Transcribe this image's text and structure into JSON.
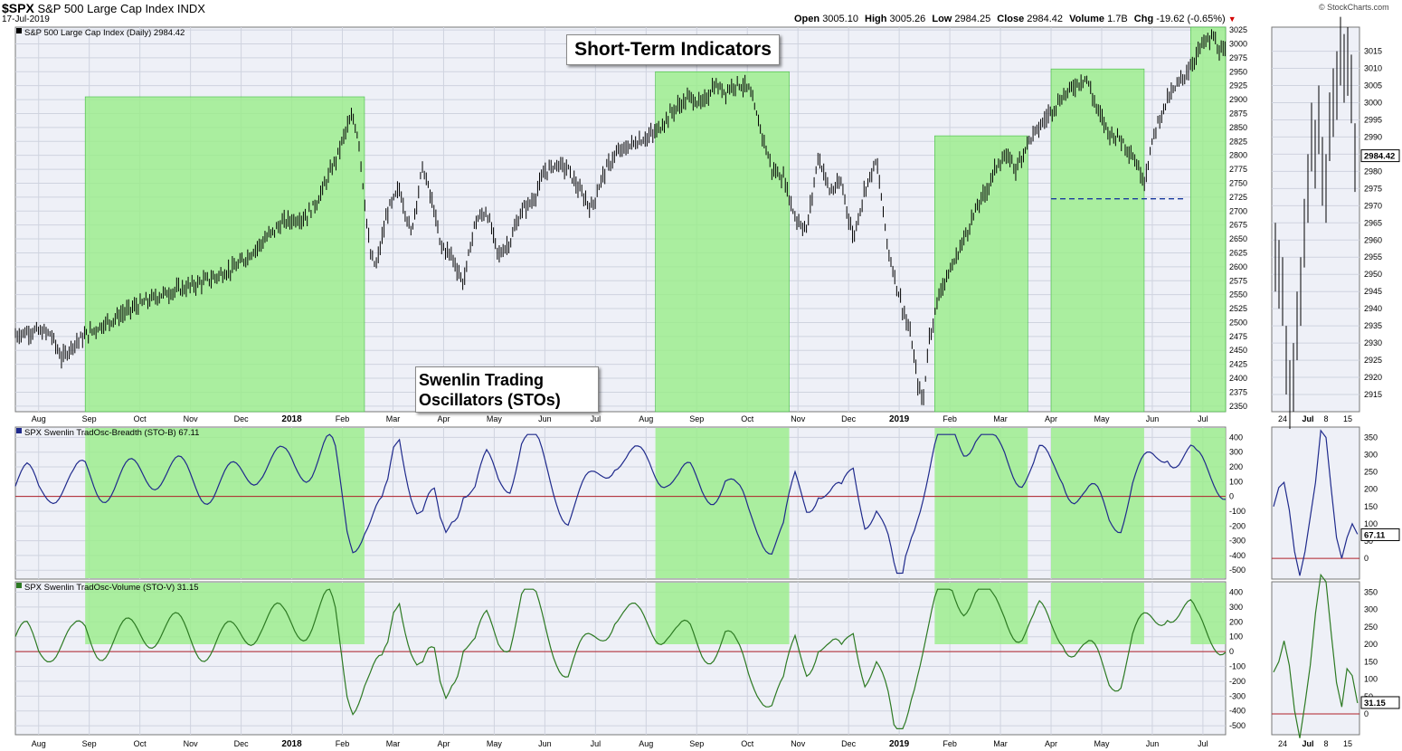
{
  "header": {
    "symbol": "$SPX",
    "name": "S&P 500 Large Cap Index",
    "exchange": "INDX",
    "date": "17-Jul-2019",
    "open_label": "Open",
    "open": "3005.10",
    "high_label": "High",
    "high": "3005.26",
    "low_label": "Low",
    "low": "2984.25",
    "close_label": "Close",
    "close": "2984.42",
    "volume_label": "Volume",
    "volume": "1.7B",
    "chg_label": "Chg",
    "chg": "-19.62 (-0.65%)",
    "watermark": "© StockCharts.com"
  },
  "annotations": {
    "short_term": "Short-Term Indicators",
    "stos_line1": "Swenlin Trading",
    "stos_line2": "Oscillators (STOs)"
  },
  "chart_data": [
    {
      "type": "line",
      "legend": "S&P 500 Large Cap Index (Daily) 2984.42",
      "last_value": "2984.42",
      "x_ticks": [
        "Aug",
        "Sep",
        "Oct",
        "Nov",
        "Dec",
        "2018",
        "Feb",
        "Mar",
        "Apr",
        "May",
        "Jun",
        "Jul",
        "Aug",
        "Sep",
        "Oct",
        "Nov",
        "Dec",
        "2019",
        "Feb",
        "Mar",
        "Apr",
        "May",
        "Jun",
        "Jul"
      ],
      "y_ticks": [
        2350,
        2375,
        2400,
        2425,
        2450,
        2475,
        2500,
        2525,
        2550,
        2575,
        2600,
        2625,
        2650,
        2675,
        2700,
        2725,
        2750,
        2775,
        2800,
        2825,
        2850,
        2875,
        2900,
        2925,
        2950,
        2975,
        3000,
        3025
      ],
      "ylim": [
        2340,
        3030
      ],
      "points": [
        [
          0,
          2478
        ],
        [
          3,
          2485
        ],
        [
          6,
          2480
        ],
        [
          8,
          2435
        ],
        [
          10,
          2462
        ],
        [
          14,
          2490
        ],
        [
          20,
          2525
        ],
        [
          25,
          2550
        ],
        [
          30,
          2565
        ],
        [
          34,
          2580
        ],
        [
          38,
          2600
        ],
        [
          42,
          2640
        ],
        [
          46,
          2680
        ],
        [
          50,
          2690
        ],
        [
          52,
          2720
        ],
        [
          55,
          2790
        ],
        [
          57,
          2850
        ],
        [
          58,
          2868
        ],
        [
          59,
          2830
        ],
        [
          60,
          2720
        ],
        [
          61,
          2620
        ],
        [
          62,
          2600
        ],
        [
          64,
          2700
        ],
        [
          66,
          2740
        ],
        [
          68,
          2660
        ],
        [
          70,
          2780
        ],
        [
          72,
          2700
        ],
        [
          73,
          2640
        ],
        [
          75,
          2620
        ],
        [
          77,
          2570
        ],
        [
          79,
          2680
        ],
        [
          81,
          2700
        ],
        [
          83,
          2620
        ],
        [
          85,
          2645
        ],
        [
          87,
          2700
        ],
        [
          89,
          2720
        ],
        [
          91,
          2770
        ],
        [
          93,
          2785
        ],
        [
          95,
          2775
        ],
        [
          97,
          2735
        ],
        [
          99,
          2705
        ],
        [
          101,
          2765
        ],
        [
          103,
          2800
        ],
        [
          106,
          2820
        ],
        [
          110,
          2840
        ],
        [
          113,
          2880
        ],
        [
          116,
          2905
        ],
        [
          118,
          2890
        ],
        [
          120,
          2925
        ],
        [
          122,
          2915
        ],
        [
          124,
          2930
        ],
        [
          126,
          2920
        ],
        [
          128,
          2850
        ],
        [
          130,
          2775
        ],
        [
          132,
          2760
        ],
        [
          134,
          2690
        ],
        [
          136,
          2665
        ],
        [
          138,
          2800
        ],
        [
          140,
          2735
        ],
        [
          142,
          2750
        ],
        [
          144,
          2650
        ],
        [
          146,
          2740
        ],
        [
          148,
          2790
        ],
        [
          150,
          2630
        ],
        [
          152,
          2545
        ],
        [
          154,
          2470
        ],
        [
          155,
          2395
        ],
        [
          156,
          2355
        ],
        [
          157,
          2470
        ],
        [
          159,
          2560
        ],
        [
          161,
          2600
        ],
        [
          163,
          2650
        ],
        [
          165,
          2700
        ],
        [
          167,
          2740
        ],
        [
          169,
          2790
        ],
        [
          171,
          2795
        ],
        [
          172,
          2775
        ],
        [
          174,
          2825
        ],
        [
          176,
          2850
        ],
        [
          178,
          2880
        ],
        [
          180,
          2905
        ],
        [
          182,
          2925
        ],
        [
          184,
          2940
        ],
        [
          186,
          2880
        ],
        [
          188,
          2840
        ],
        [
          190,
          2830
        ],
        [
          192,
          2800
        ],
        [
          194,
          2755
        ],
        [
          196,
          2850
        ],
        [
          198,
          2900
        ],
        [
          200,
          2930
        ],
        [
          202,
          2960
        ],
        [
          204,
          3000
        ],
        [
          206,
          3012
        ],
        [
          207,
          2984
        ]
      ],
      "x_span": 208
    },
    {
      "type": "line",
      "legend": "SPX Swenlin TradOsc-Breadth (STO-B) 67.11",
      "last_value": "67.11",
      "y_ticks": [
        -500,
        -400,
        -300,
        -200,
        -100,
        0,
        100,
        200,
        300,
        400
      ],
      "ylim": [
        -560,
        470
      ],
      "x_span": 208
    },
    {
      "type": "line",
      "legend": "SPX Swenlin TradOsc-Volume (STO-V) 31.15",
      "last_value": "31.15",
      "y_ticks": [
        -500,
        -400,
        -300,
        -200,
        -100,
        0,
        100,
        200,
        300,
        400
      ],
      "ylim": [
        -560,
        470
      ],
      "x_span": 208
    },
    {
      "type": "line",
      "name": "zoom",
      "x_ticks": [
        "24",
        "Jul",
        "8",
        "15"
      ],
      "y_ticks_price": [
        2915,
        2920,
        2925,
        2930,
        2935,
        2940,
        2945,
        2950,
        2955,
        2960,
        2965,
        2970,
        2975,
        2980,
        2985,
        2990,
        2995,
        3000,
        3005,
        3010,
        3015
      ],
      "price_ylim": [
        2910,
        3022
      ],
      "y_ticks_osc": [
        0,
        50,
        100,
        150,
        200,
        250,
        300,
        350
      ],
      "osc_ylim": [
        -60,
        380
      ]
    }
  ],
  "colors": {
    "shade": "#99ee88",
    "breadth_line": "#1f2a8c",
    "volume_line": "#2d7a23",
    "zero_line": "#b0202a",
    "support_line": "#1a3a9e",
    "panel_bg": "#eef0f7",
    "grid": "#cfd3df"
  }
}
